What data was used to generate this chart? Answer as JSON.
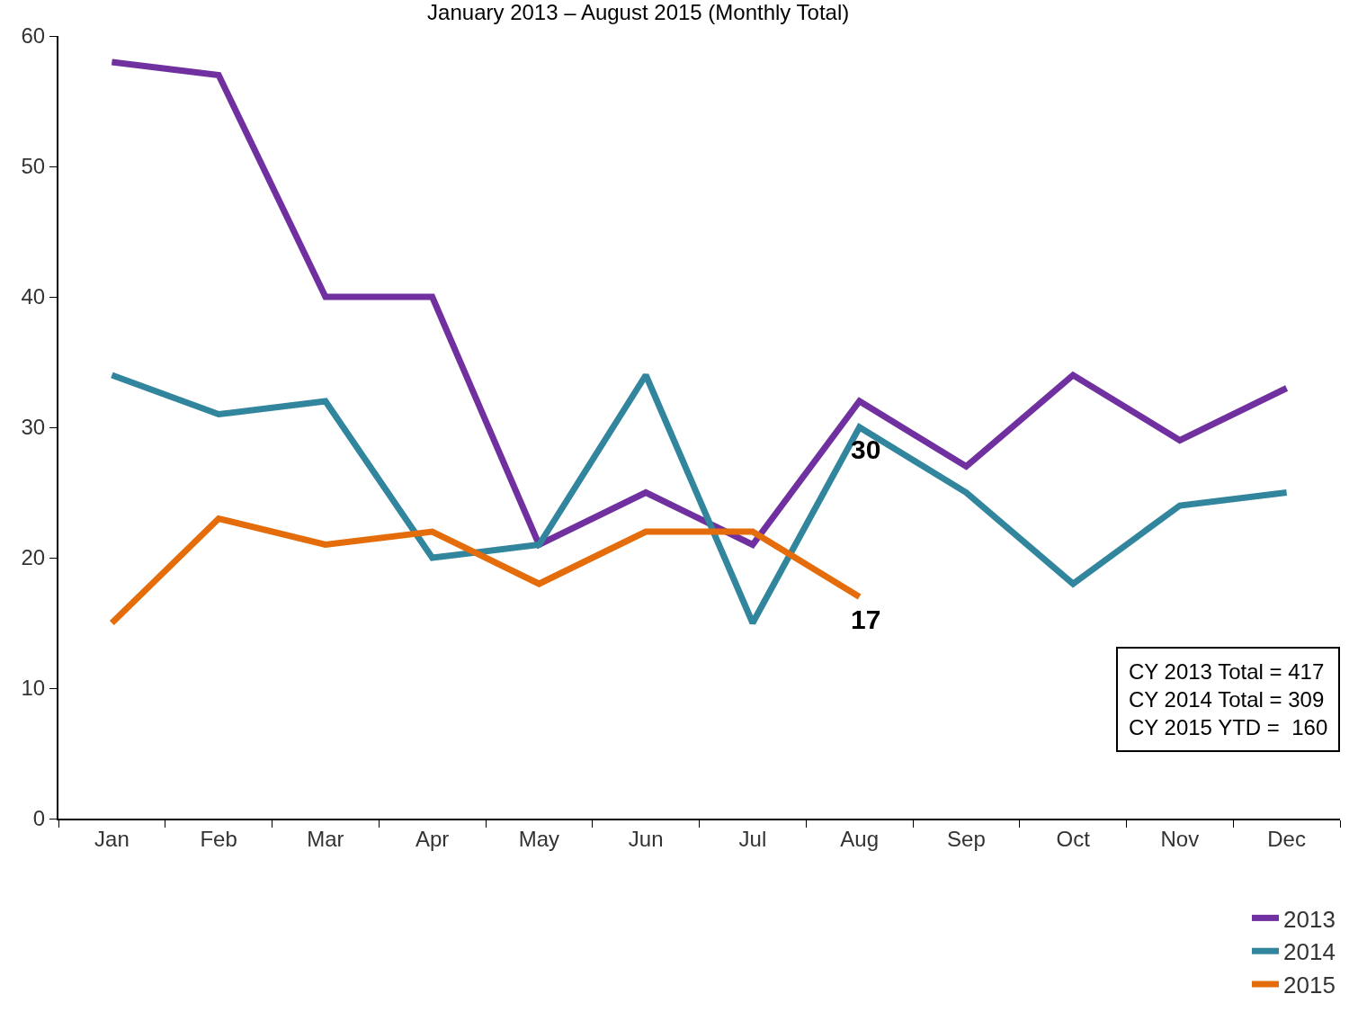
{
  "chart_data": {
    "type": "line",
    "title": "January 2013 – August 2015 (Monthly Total)",
    "categories": [
      "Jan",
      "Feb",
      "Mar",
      "Apr",
      "May",
      "Jun",
      "Jul",
      "Aug",
      "Sep",
      "Oct",
      "Nov",
      "Dec"
    ],
    "series": [
      {
        "name": "2013",
        "color": "#7030a0",
        "values": [
          58,
          57,
          40,
          40,
          21,
          25,
          21,
          32,
          27,
          34,
          29,
          33
        ]
      },
      {
        "name": "2014",
        "color": "#31859c",
        "values": [
          34,
          31,
          32,
          20,
          21,
          34,
          15,
          30,
          25,
          18,
          24,
          25
        ]
      },
      {
        "name": "2015",
        "color": "#e46c0a",
        "values": [
          15,
          23,
          21,
          22,
          18,
          22,
          22,
          17,
          null,
          null,
          null,
          null
        ]
      }
    ],
    "ylim": [
      0,
      60
    ],
    "yticks": [
      0,
      10,
      20,
      30,
      40,
      50,
      60
    ],
    "grid": false,
    "legend": "bottom right",
    "line_style": "solid",
    "annotations": [
      {
        "text": "30",
        "x": "Aug",
        "y": 30
      },
      {
        "text": "17",
        "x": "Aug",
        "y": 17
      },
      "CY 2013 Total = 417",
      "CY 2014 Total = 309",
      "CY 2015 YTD =  160"
    ]
  }
}
